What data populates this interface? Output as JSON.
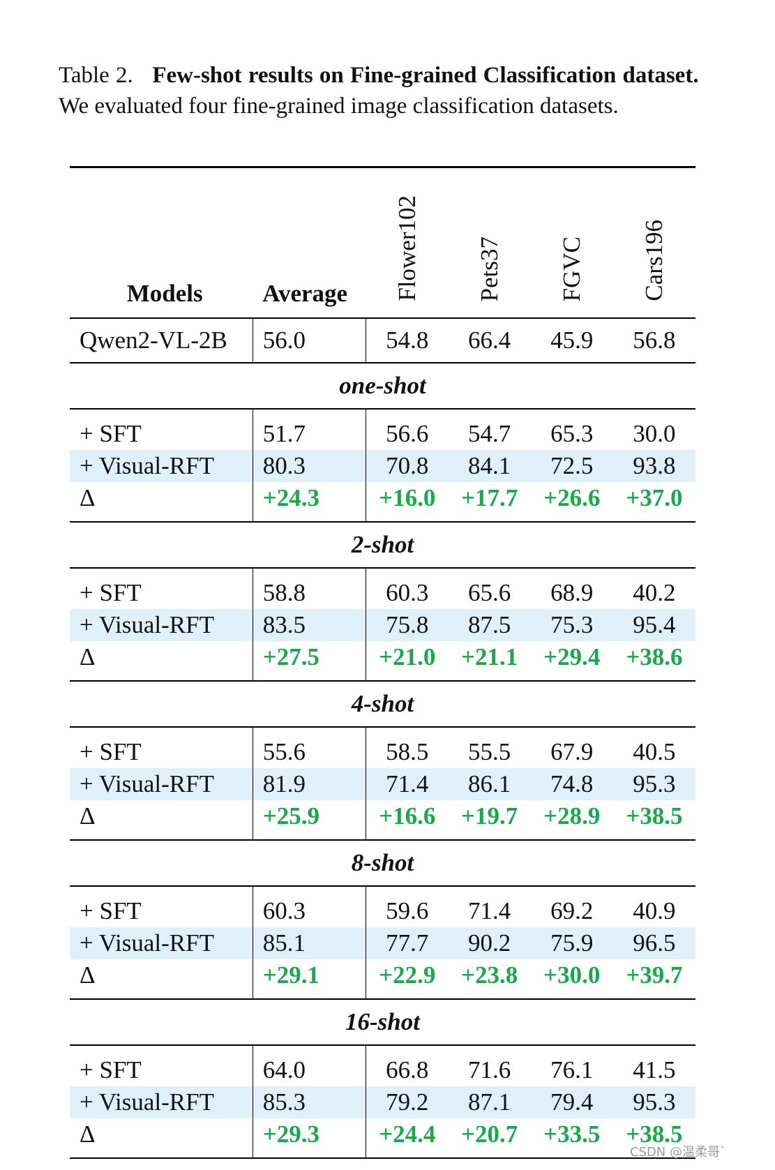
{
  "caption": {
    "label": "Table 2.",
    "title": "Few-shot results on Fine-grained Classification dataset.",
    "text": "We evaluated four fine-grained image classification datasets."
  },
  "header": {
    "models": "Models",
    "average": "Average",
    "datasets": [
      "Flower102",
      "Pets37",
      "FGVC",
      "Cars196"
    ]
  },
  "baseline": {
    "model": "Qwen2-VL-2B",
    "average": "56.0",
    "values": [
      "54.8",
      "66.4",
      "45.9",
      "56.8"
    ]
  },
  "sections": [
    {
      "title": "one-shot",
      "rows": [
        {
          "model": "+ SFT",
          "average": "51.7",
          "values": [
            "56.6",
            "54.7",
            "65.3",
            "30.0"
          ]
        },
        {
          "model": "+ Visual-RFT",
          "average": "80.3",
          "values": [
            "70.8",
            "84.1",
            "72.5",
            "93.8"
          ]
        },
        {
          "model": "Δ",
          "average": "+24.3",
          "values": [
            "+16.0",
            "+17.7",
            "+26.6",
            "+37.0"
          ]
        }
      ]
    },
    {
      "title": "2-shot",
      "rows": [
        {
          "model": "+ SFT",
          "average": "58.8",
          "values": [
            "60.3",
            "65.6",
            "68.9",
            "40.2"
          ]
        },
        {
          "model": "+ Visual-RFT",
          "average": "83.5",
          "values": [
            "75.8",
            "87.5",
            "75.3",
            "95.4"
          ]
        },
        {
          "model": "Δ",
          "average": "+27.5",
          "values": [
            "+21.0",
            "+21.1",
            "+29.4",
            "+38.6"
          ]
        }
      ]
    },
    {
      "title": "4-shot",
      "rows": [
        {
          "model": "+ SFT",
          "average": "55.6",
          "values": [
            "58.5",
            "55.5",
            "67.9",
            "40.5"
          ]
        },
        {
          "model": "+ Visual-RFT",
          "average": "81.9",
          "values": [
            "71.4",
            "86.1",
            "74.8",
            "95.3"
          ]
        },
        {
          "model": "Δ",
          "average": "+25.9",
          "values": [
            "+16.6",
            "+19.7",
            "+28.9",
            "+38.5"
          ]
        }
      ]
    },
    {
      "title": "8-shot",
      "rows": [
        {
          "model": "+ SFT",
          "average": "60.3",
          "values": [
            "59.6",
            "71.4",
            "69.2",
            "40.9"
          ]
        },
        {
          "model": "+ Visual-RFT",
          "average": "85.1",
          "values": [
            "77.7",
            "90.2",
            "75.9",
            "96.5"
          ]
        },
        {
          "model": "Δ",
          "average": "+29.1",
          "values": [
            "+22.9",
            "+23.8",
            "+30.0",
            "+39.7"
          ]
        }
      ]
    },
    {
      "title": "16-shot",
      "rows": [
        {
          "model": "+ SFT",
          "average": "64.0",
          "values": [
            "66.8",
            "71.6",
            "76.1",
            "41.5"
          ]
        },
        {
          "model": "+ Visual-RFT",
          "average": "85.3",
          "values": [
            "79.2",
            "87.1",
            "79.4",
            "95.3"
          ]
        },
        {
          "model": "Δ",
          "average": "+29.3",
          "values": [
            "+24.4",
            "+20.7",
            "+33.5",
            "+38.5"
          ]
        }
      ]
    }
  ],
  "watermark": "CSDN @温柔哥`",
  "colors": {
    "highlight_row": "#dff0fa",
    "delta_green": "#1aa84a"
  }
}
